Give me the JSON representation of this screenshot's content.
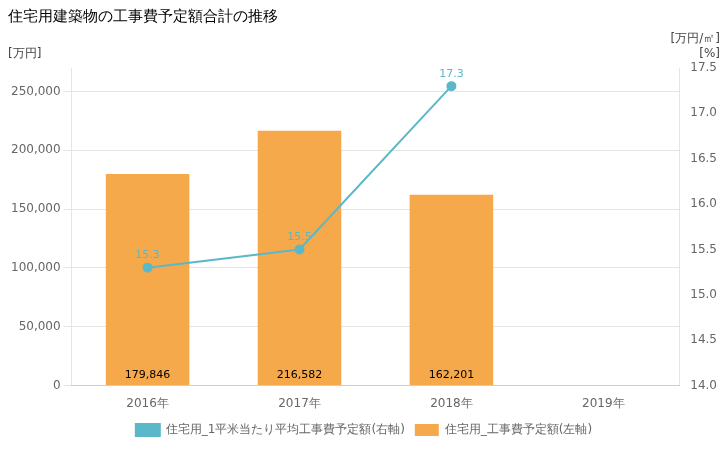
{
  "chart_data": {
    "type": "bar",
    "title": "住宅用建築物の工事費予定額合計の推移",
    "categories": [
      "2016年",
      "2017年",
      "2018年",
      "2019年"
    ],
    "ylabel": "[万円]",
    "y2label": [
      "[万円/㎡]",
      "[%]"
    ],
    "series": [
      {
        "name": "住宅用_工事費予定額(左軸)",
        "type": "bar",
        "color": "#F5A94A",
        "values": [
          179846,
          216582,
          162201,
          null
        ],
        "value_labels": [
          "179,846",
          "216,582",
          "162,201",
          null
        ]
      },
      {
        "name": "住宅用_1平米当たり平均工事費予定額(右軸)",
        "type": "line",
        "color": "#5BB8C8",
        "marker": "circle",
        "axis": "y2",
        "values": [
          15.3,
          15.5,
          17.3,
          null
        ]
      }
    ],
    "ylim": [
      0,
      270000
    ],
    "yticks": [
      0,
      {
        "value": 50000,
        "label": "50,000"
      },
      {
        "value": 100000,
        "label": "100,000"
      },
      {
        "value": 150000,
        "label": "150,000"
      },
      {
        "value": 200000,
        "label": "200,000"
      },
      {
        "value": 250000,
        "label": "250,000"
      }
    ],
    "y2lim": [
      14.0,
      17.5
    ],
    "y2ticks": [
      {
        "value": 14.0,
        "label": "14.0"
      },
      14.5,
      {
        "value": 15.0,
        "label": "15.0"
      },
      15.5,
      {
        "value": 16.0,
        "label": "16.0"
      },
      16.5,
      {
        "value": 17.0,
        "label": "17.0"
      },
      17.5
    ],
    "grid": true,
    "legend": "bottom",
    "data_labels": true
  }
}
